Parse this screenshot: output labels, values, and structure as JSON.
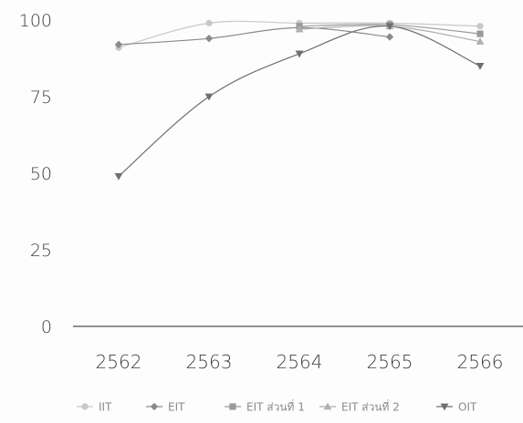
{
  "chart_data": {
    "type": "line",
    "categories": [
      "2562",
      "2563",
      "2564",
      "2565",
      "2566"
    ],
    "ylim": [
      0,
      100
    ],
    "yticks": [
      0,
      25,
      50,
      75,
      100
    ],
    "grid": false,
    "legend_position": "bottom",
    "series": [
      {
        "name": "IIT",
        "values": [
          91,
          99,
          99,
          99,
          98
        ],
        "color": "#c8c8c8",
        "marker": "circle"
      },
      {
        "name": "EIT",
        "values": [
          92,
          94,
          97.5,
          94.5,
          null
        ],
        "color": "#8a8a8a",
        "marker": "diamond"
      },
      {
        "name": "EIT ส่วนที่ 1",
        "values": [
          null,
          null,
          98,
          98.5,
          95.5
        ],
        "color": "#9a9a9a",
        "marker": "square"
      },
      {
        "name": "EIT ส่วนที่ 2",
        "values": [
          null,
          null,
          97,
          98,
          93
        ],
        "color": "#b0b0b0",
        "marker": "triangle-up"
      },
      {
        "name": "OIT",
        "values": [
          49,
          75,
          89,
          98,
          85
        ],
        "color": "#6f6f6f",
        "marker": "triangle-down"
      }
    ]
  }
}
